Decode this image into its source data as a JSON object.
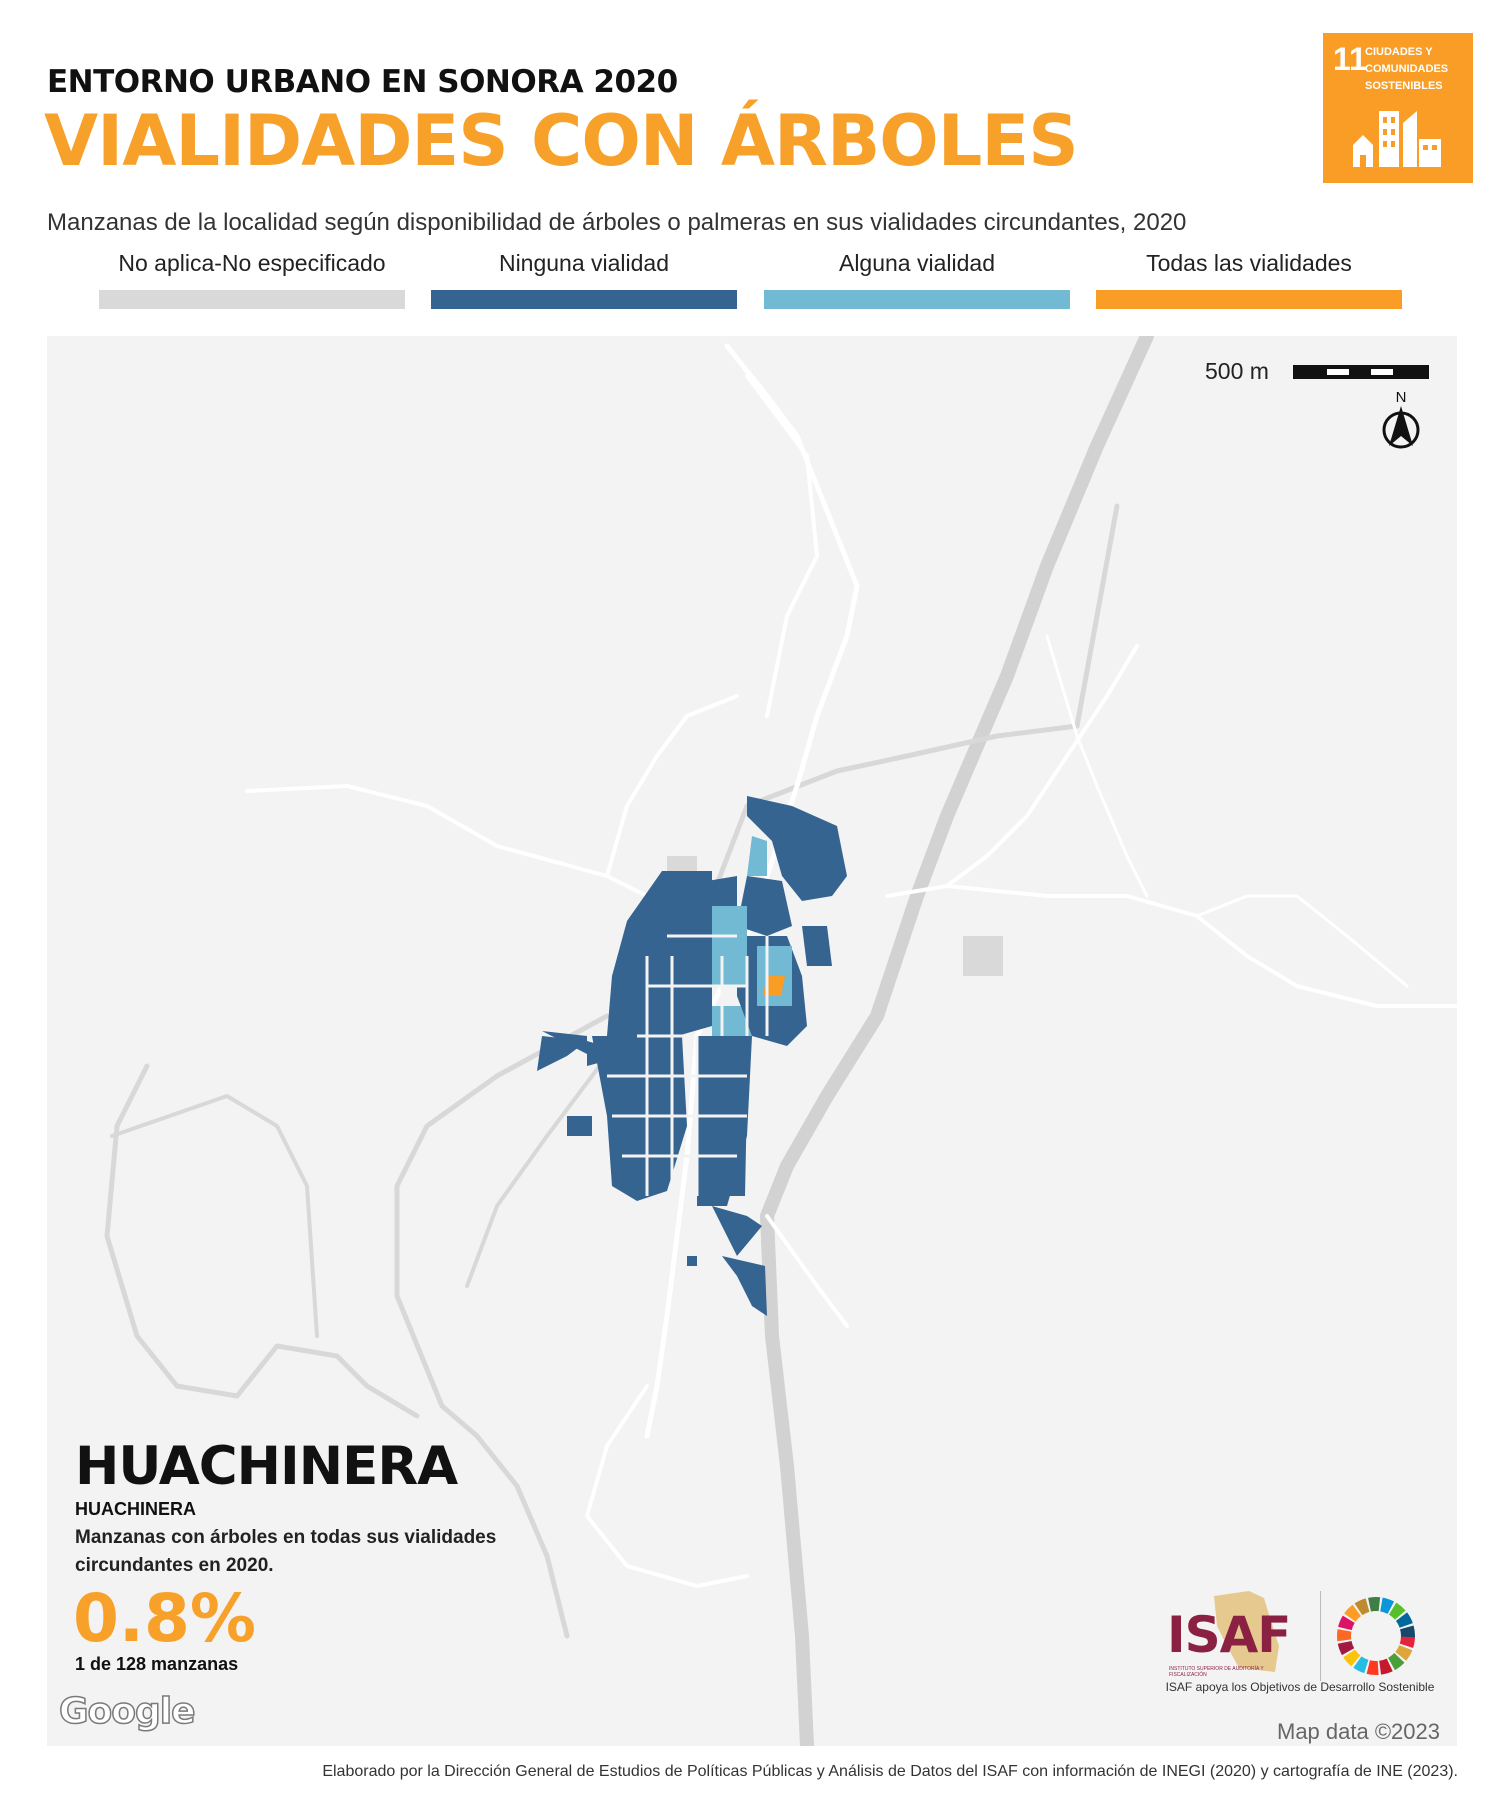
{
  "header": {
    "kicker": "ENTORNO URBANO EN SONORA 2020",
    "title": "VIALIDADES CON ÁRBOLES",
    "subtitle": "Manzanas de la localidad según disponibilidad de árboles o palmeras en sus vialidades circundantes, 2020"
  },
  "sdg_badge": {
    "number": "11",
    "text": "CIUDADES Y COMUNIDADES SOSTENIBLES",
    "color": "#f99d26",
    "icon": "city-buildings-icon"
  },
  "legend": [
    {
      "label": "No aplica-No especificado",
      "color": "#d9d9d9"
    },
    {
      "label": "Ninguna vialidad",
      "color": "#34648f"
    },
    {
      "label": "Alguna vialidad",
      "color": "#72b9d4"
    },
    {
      "label": "Todas las vialidades",
      "color": "#f99d26"
    }
  ],
  "map": {
    "scale_label": "500 m",
    "north_label": "N",
    "attribution": "Map data ©2023",
    "provider_logo": "Google"
  },
  "locality": {
    "name": "HUACHINERA",
    "municipality": "HUACHINERA",
    "description": "Manzanas con árboles en todas sus vialidades circundantes en 2020.",
    "percentage": "0.8%",
    "count_text": "1 de 128 manzanas"
  },
  "isaf": {
    "logo_text": "ISAF",
    "logo_subtext": "INSTITUTO SUPERIOR DE AUDITORÍA Y FISCALIZACIÓN",
    "caption": "ISAF apoya los Objetivos de Desarrollo Sostenible"
  },
  "footer": "Elaborado por la Dirección General de Estudios de Políticas Públicas y Análisis de Datos del ISAF con información de INEGI (2020) y cartografía de INE (2023)."
}
